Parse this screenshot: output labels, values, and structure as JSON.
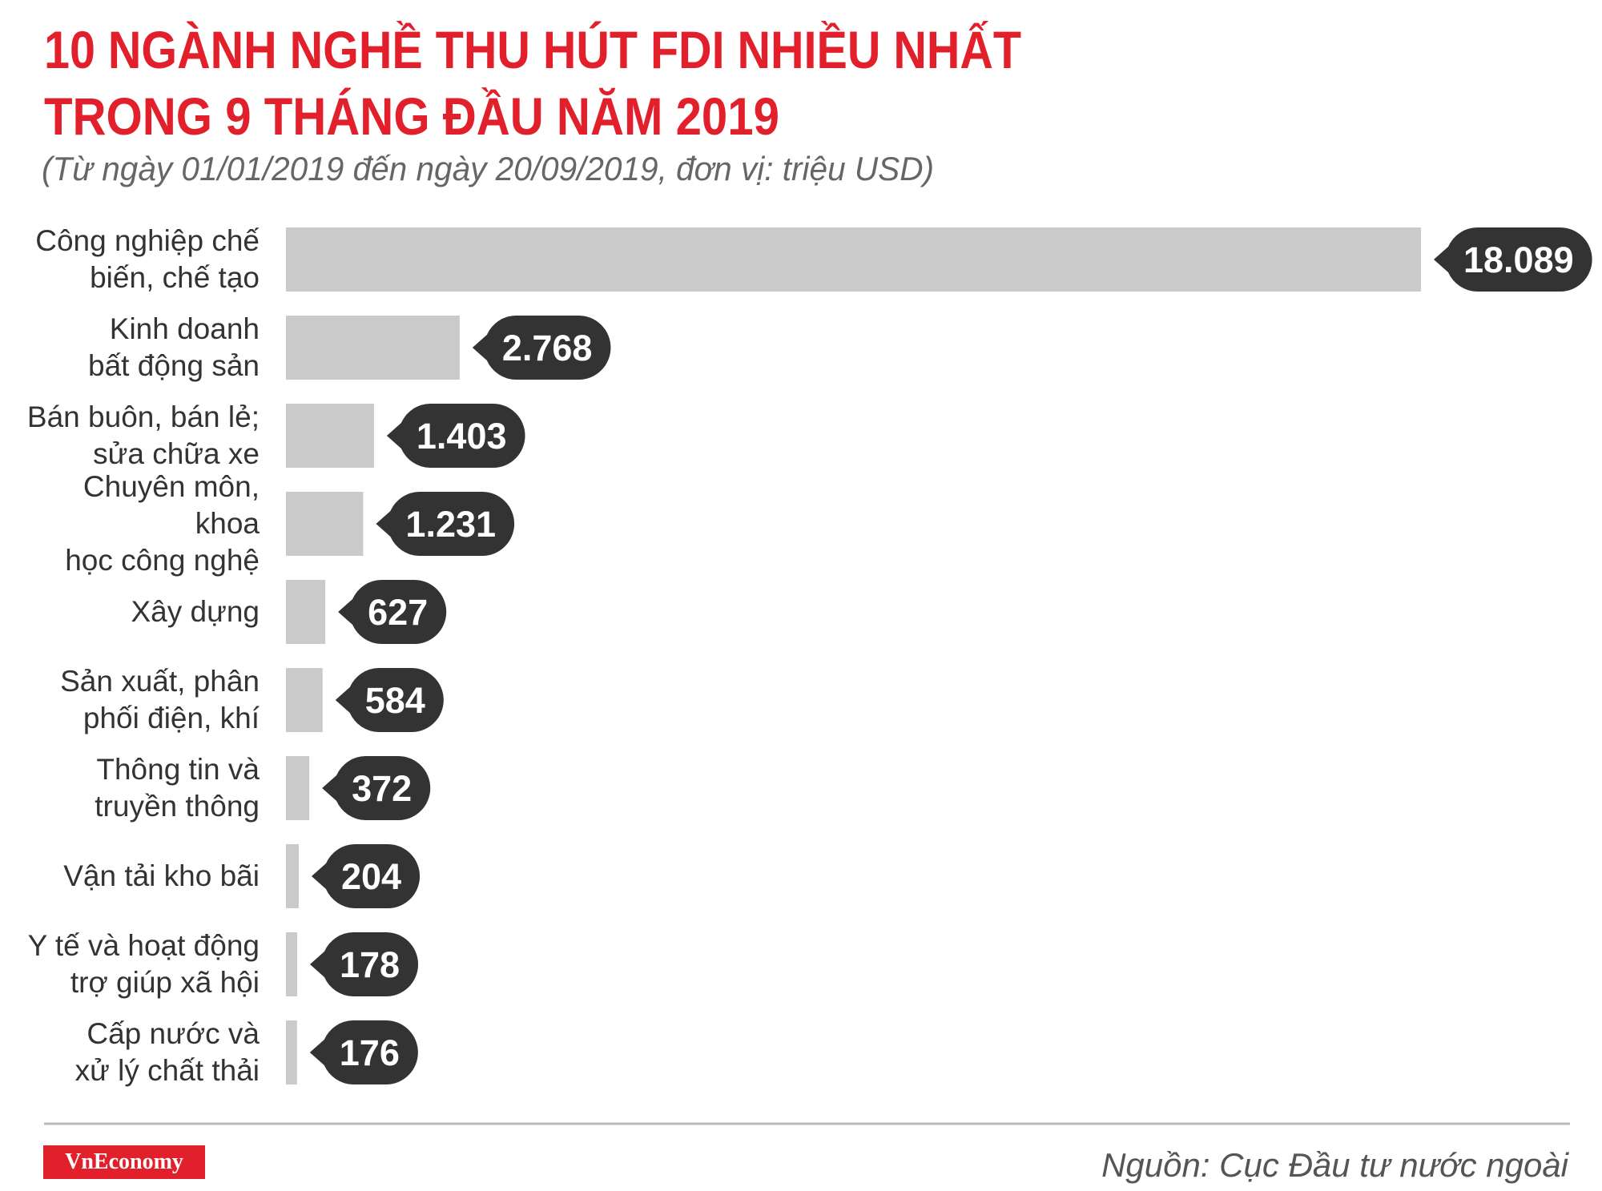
{
  "chart_data": {
    "type": "bar",
    "orientation": "horizontal",
    "title": [
      "10 NGÀNH NGHỀ THU HÚT FDI NHIỀU NHẤT",
      "TRONG 9 THÁNG ĐẦU NĂM 2019"
    ],
    "subtitle": "(Từ ngày 01/01/2019 đến ngày 20/09/2019, đơn vị: triệu USD)",
    "categories": [
      "Công nghiệp chế\nbiến, chế tạo",
      "Kinh doanh\nbất động sản",
      "Bán buôn, bán lẻ;\nsửa chữa xe",
      "Chuyên môn, khoa\nhọc công nghệ",
      "Xây dựng",
      "Sản xuất, phân\nphối điện, khí",
      "Thông tin và\ntruyền thông",
      "Vận tải kho bãi",
      "Y tế và hoạt động\ntrợ giúp xã hội",
      "Cấp nước và\nxử lý chất thải"
    ],
    "values": [
      18089,
      2768,
      1403,
      1231,
      627,
      584,
      372,
      204,
      178,
      176
    ],
    "value_labels": [
      "18.089",
      "2.768",
      "1.403",
      "1.231",
      "627",
      "584",
      "372",
      "204",
      "178",
      "176"
    ],
    "color": "#cbcacb",
    "label_color": "#333333",
    "title_color": "#e2202b",
    "logo": "VnEconomy",
    "source": "Nguồn: Cục Đầu tư nước ngoài"
  }
}
